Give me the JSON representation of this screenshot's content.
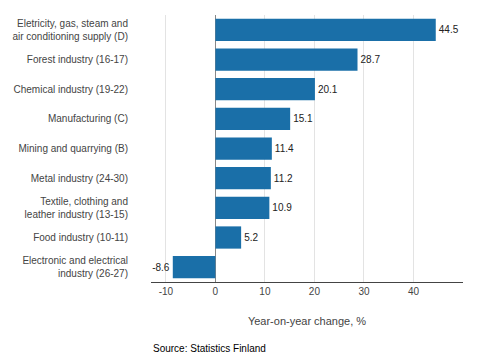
{
  "chart_data": {
    "type": "bar",
    "orientation": "horizontal",
    "categories": [
      "Electronic and electrical\nindustry (26-27)",
      "Food industry (10-11)",
      "Textile, clothing and\nleather industry (13-15)",
      "Metal industry (24-30)",
      "Mining and quarrying (B)",
      "Manufacturing (C)",
      "Chemical industry (19-22)",
      "Forest industry (16-17)",
      "Eletricity, gas, steam and\nair conditioning supply (D)"
    ],
    "values": [
      -8.6,
      5.2,
      10.9,
      11.2,
      11.4,
      15.1,
      20.1,
      28.7,
      44.5
    ],
    "color": "#1a6fa8",
    "xlim": [
      -13,
      50
    ],
    "xticks": [
      -10,
      0,
      10,
      20,
      30,
      40
    ],
    "xlabel": "Year-on-year change, %",
    "source": "Source: Statistics Finland",
    "grid": true,
    "data_labels": true
  }
}
